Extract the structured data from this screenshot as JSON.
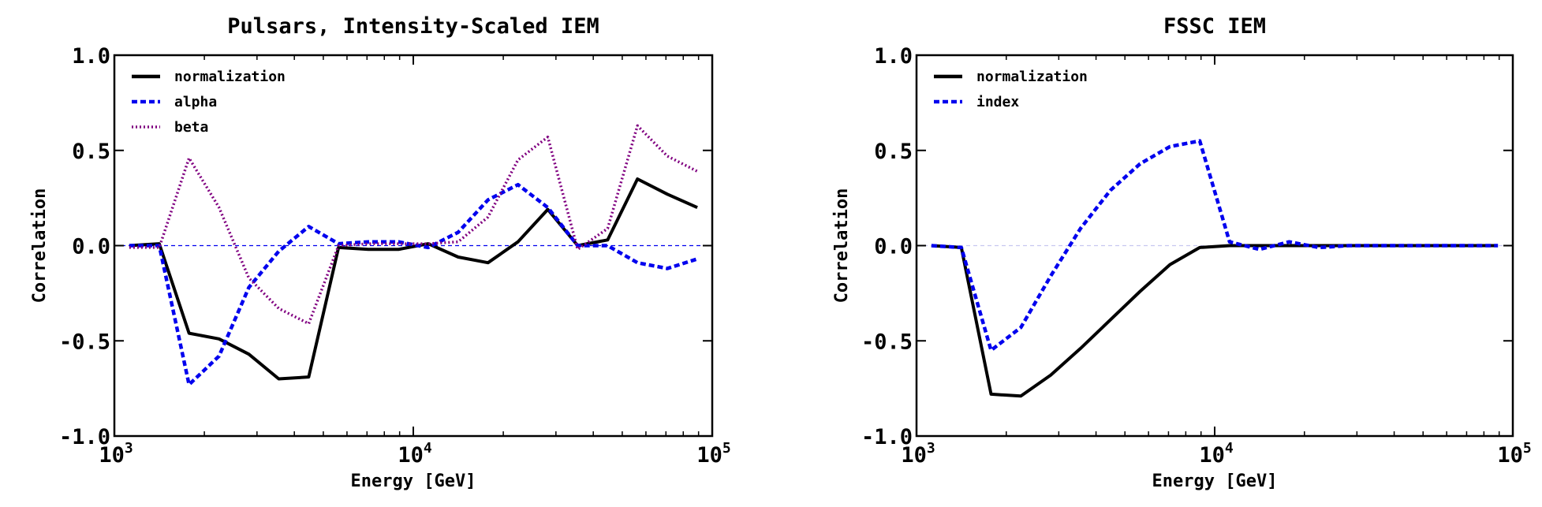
{
  "chart_data": [
    {
      "type": "line",
      "title": "Pulsars, Intensity-Scaled IEM",
      "xlabel": "Energy [GeV]",
      "ylabel": "Correlation",
      "xscale": "log",
      "xlim": [
        1000,
        100000
      ],
      "ylim": [
        -1.0,
        1.0
      ],
      "yticks": [
        "-1.0",
        "-0.5",
        "0.0",
        "0.5",
        "1.0"
      ],
      "xticks": [
        {
          "base": "10",
          "exp": "3"
        },
        {
          "base": "10",
          "exp": "4"
        },
        {
          "base": "10",
          "exp": "5"
        }
      ],
      "legend_position": "top-left",
      "reference_line": {
        "y": 0.0,
        "color": "#0000ee",
        "style": "dashed"
      },
      "series": [
        {
          "name": "normalization",
          "color": "#000000",
          "style": "solid",
          "x": [
            1122,
            1413,
            1778,
            2239,
            2818,
            3548,
            4467,
            5623,
            7079,
            8913,
            11220,
            14130,
            17780,
            22390,
            28180,
            35480,
            44670,
            56230,
            70790,
            89130
          ],
          "y": [
            0.0,
            0.01,
            -0.46,
            -0.49,
            -0.57,
            -0.7,
            -0.69,
            -0.01,
            -0.02,
            -0.02,
            0.01,
            -0.06,
            -0.09,
            0.02,
            0.19,
            0.0,
            0.03,
            0.35,
            0.27,
            0.2
          ]
        },
        {
          "name": "alpha",
          "color": "#0000ee",
          "style": "dotted",
          "x": [
            1122,
            1413,
            1778,
            2239,
            2818,
            3548,
            4467,
            5623,
            7079,
            8913,
            11220,
            14130,
            17780,
            22390,
            28180,
            35480,
            44670,
            56230,
            70790,
            89130
          ],
          "y": [
            0.0,
            0.0,
            -0.73,
            -0.58,
            -0.22,
            -0.03,
            0.1,
            0.01,
            0.02,
            0.02,
            -0.01,
            0.07,
            0.24,
            0.32,
            0.2,
            0.0,
            0.0,
            -0.09,
            -0.12,
            -0.07
          ]
        },
        {
          "name": "beta",
          "color": "#800080",
          "style": "dash-dot",
          "x": [
            1122,
            1413,
            1778,
            2239,
            2818,
            3548,
            4467,
            5623,
            7079,
            8913,
            11220,
            14130,
            17780,
            22390,
            28180,
            35480,
            44670,
            56230,
            70790,
            89130
          ],
          "y": [
            -0.01,
            -0.01,
            0.46,
            0.2,
            -0.17,
            -0.33,
            -0.41,
            0.0,
            0.01,
            0.01,
            0.01,
            0.02,
            0.15,
            0.45,
            0.57,
            -0.02,
            0.09,
            0.63,
            0.47,
            0.39
          ]
        }
      ]
    },
    {
      "type": "line",
      "title": "FSSC IEM",
      "xlabel": "Energy [GeV]",
      "ylabel": "Correlation",
      "xscale": "log",
      "xlim": [
        1000,
        100000
      ],
      "ylim": [
        -1.0,
        1.0
      ],
      "yticks": [
        "-1.0",
        "-0.5",
        "0.0",
        "0.5",
        "1.0"
      ],
      "xticks": [
        {
          "base": "10",
          "exp": "3"
        },
        {
          "base": "10",
          "exp": "4"
        },
        {
          "base": "10",
          "exp": "5"
        }
      ],
      "legend_position": "top-left",
      "reference_line": {
        "y": 0.0,
        "color": "#c8c8f0",
        "style": "dashed"
      },
      "series": [
        {
          "name": "normalization",
          "color": "#000000",
          "style": "solid",
          "x": [
            1122,
            1413,
            1778,
            2239,
            2818,
            3548,
            4467,
            5623,
            7079,
            8913,
            11220,
            14130,
            17780,
            22390,
            28180,
            35480,
            44670,
            56230,
            70790,
            89130
          ],
          "y": [
            0.0,
            -0.01,
            -0.78,
            -0.79,
            -0.68,
            -0.54,
            -0.39,
            -0.24,
            -0.1,
            -0.01,
            0.0,
            0.0,
            0.0,
            0.0,
            0.0,
            0.0,
            0.0,
            0.0,
            0.0,
            0.0
          ]
        },
        {
          "name": "index",
          "color": "#0000ee",
          "style": "dotted",
          "x": [
            1122,
            1413,
            1778,
            2239,
            2818,
            3548,
            4467,
            5623,
            7079,
            8913,
            11220,
            14130,
            17780,
            22390,
            28180,
            35480,
            44670,
            56230,
            70790,
            89130
          ],
          "y": [
            0.0,
            -0.01,
            -0.55,
            -0.43,
            -0.16,
            0.09,
            0.29,
            0.43,
            0.52,
            0.55,
            0.02,
            -0.02,
            0.02,
            -0.01,
            0.0,
            0.0,
            0.0,
            0.0,
            0.0,
            0.0
          ]
        }
      ]
    }
  ]
}
